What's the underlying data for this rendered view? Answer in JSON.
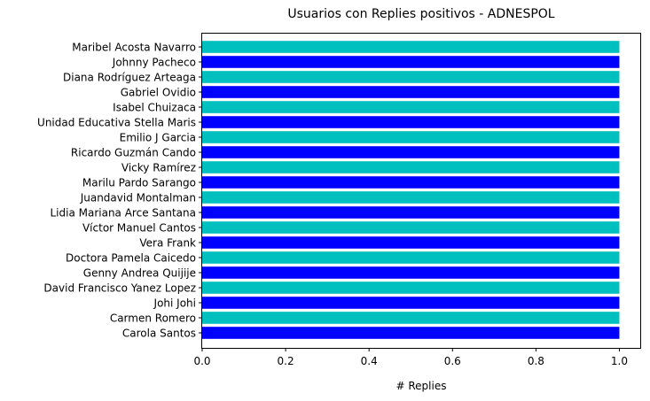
{
  "chart_data": {
    "type": "bar",
    "orientation": "horizontal",
    "title": "Usuarios con Replies positivos - ADNESPOL",
    "xlabel": "# Replies",
    "ylabel": "",
    "xlim": [
      0,
      1.05
    ],
    "xticks": [
      "0.0",
      "0.2",
      "0.4",
      "0.6",
      "0.8",
      "1.0"
    ],
    "grid": false,
    "colors": [
      "#00bfbf",
      "#0000ff"
    ],
    "categories": [
      "Maribel Acosta Navarro",
      "Johnny Pacheco",
      "Diana Rodríguez Arteaga",
      "Gabriel Ovidio",
      "Isabel Chuizaca",
      "Unidad Educativa Stella Maris",
      "Emilio J Garcia",
      "Ricardo Guzmán Cando",
      "Vicky Ramírez",
      "Marilu Pardo Sarango",
      "Juandavid Montalman",
      "Lidia Mariana Arce Santana",
      "Víctor Manuel Cantos",
      "Vera Frank",
      "Doctora Pamela Caicedo",
      "Genny Andrea Quijije",
      "David Francisco Yanez Lopez",
      "Johi Johi",
      "Carmen Romero",
      "Carola Santos"
    ],
    "values": [
      1,
      1,
      1,
      1,
      1,
      1,
      1,
      1,
      1,
      1,
      1,
      1,
      1,
      1,
      1,
      1,
      1,
      1,
      1,
      1
    ]
  }
}
